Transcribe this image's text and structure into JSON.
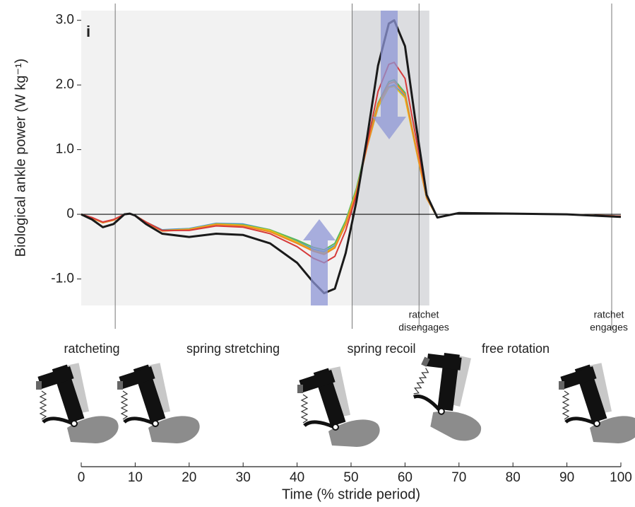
{
  "chart_data": {
    "type": "line",
    "panel_label": "i",
    "ylabel": "Biological ankle power (W kg⁻¹)",
    "xlabel": "Time (% stride period)",
    "x": [
      0,
      2,
      4,
      6,
      8,
      9,
      10,
      12,
      15,
      20,
      25,
      30,
      35,
      40,
      43,
      45,
      47,
      49,
      51,
      53,
      55,
      57,
      58,
      60,
      62,
      64,
      66,
      70,
      80,
      90,
      100
    ],
    "series": [
      {
        "color": "#4a8fd4",
        "values": [
          0,
          -0.06,
          -0.13,
          -0.09,
          0,
          0.01,
          -0.02,
          -0.12,
          -0.24,
          -0.22,
          -0.14,
          -0.15,
          -0.24,
          -0.42,
          -0.54,
          -0.58,
          -0.48,
          -0.12,
          0.38,
          1.05,
          1.65,
          1.97,
          2.0,
          1.82,
          1.02,
          0.25,
          -0.05,
          0.02,
          0.01,
          0,
          -0.03
        ]
      },
      {
        "color": "#5cb85c",
        "values": [
          0,
          -0.06,
          -0.13,
          -0.09,
          0,
          0.01,
          -0.02,
          -0.12,
          -0.25,
          -0.23,
          -0.15,
          -0.16,
          -0.24,
          -0.4,
          -0.51,
          -0.55,
          -0.45,
          -0.1,
          0.4,
          1.1,
          1.72,
          2.05,
          2.08,
          1.88,
          1.05,
          0.25,
          -0.05,
          0.02,
          0.01,
          0,
          -0.03
        ]
      },
      {
        "color": "#e0c21b",
        "values": [
          0,
          -0.06,
          -0.13,
          -0.09,
          0,
          0.01,
          -0.02,
          -0.12,
          -0.25,
          -0.23,
          -0.15,
          -0.17,
          -0.25,
          -0.43,
          -0.56,
          -0.6,
          -0.5,
          -0.14,
          0.36,
          1.05,
          1.66,
          1.96,
          1.98,
          1.8,
          1.02,
          0.25,
          -0.05,
          0.02,
          0.01,
          0,
          -0.03
        ]
      },
      {
        "color": "#f08a24",
        "values": [
          0,
          -0.06,
          -0.13,
          -0.09,
          0,
          0.01,
          -0.02,
          -0.13,
          -0.26,
          -0.24,
          -0.16,
          -0.18,
          -0.27,
          -0.45,
          -0.57,
          -0.62,
          -0.52,
          -0.16,
          0.34,
          1.05,
          1.7,
          2.02,
          2.05,
          1.85,
          1.05,
          0.25,
          -0.05,
          0.02,
          0.01,
          0,
          -0.03
        ]
      },
      {
        "color": "#d63a3a",
        "values": [
          0,
          -0.05,
          -0.12,
          -0.08,
          0,
          0.01,
          -0.02,
          -0.12,
          -0.25,
          -0.25,
          -0.18,
          -0.2,
          -0.3,
          -0.5,
          -0.68,
          -0.75,
          -0.65,
          -0.25,
          0.3,
          1.1,
          1.9,
          2.32,
          2.35,
          2.1,
          1.2,
          0.3,
          -0.05,
          0.02,
          0.01,
          0,
          -0.03
        ]
      },
      {
        "color": "#1a1a1a",
        "values": [
          0,
          -0.08,
          -0.2,
          -0.15,
          0,
          0.01,
          -0.02,
          -0.15,
          -0.3,
          -0.35,
          -0.3,
          -0.32,
          -0.45,
          -0.75,
          -1.05,
          -1.22,
          -1.15,
          -0.6,
          0.2,
          1.2,
          2.3,
          2.95,
          3.0,
          2.6,
          1.4,
          0.3,
          -0.05,
          0.02,
          0.01,
          0,
          -0.04
        ]
      }
    ],
    "xlim": [
      0,
      100
    ],
    "xticks": [
      0,
      10,
      20,
      30,
      40,
      50,
      60,
      70,
      80,
      90,
      100
    ],
    "ylim": [
      -1.41,
      3.15
    ],
    "yticks": [
      {
        "value": -1,
        "label": "-1.0"
      },
      0,
      {
        "value": 1,
        "label": "1.0"
      },
      {
        "value": 2,
        "label": "2.0"
      },
      {
        "value": 3,
        "label": "3.0"
      }
    ],
    "shaded_regions": [
      {
        "from": 0,
        "to": 64.5,
        "color": "#f2f2f2"
      },
      {
        "from": 50.2,
        "to": 64.5,
        "color": "#dcdde0"
      }
    ],
    "vlines": [
      6.3,
      50.2,
      62.6,
      98.3
    ],
    "annotations": [
      [
        "ratchet",
        "disengages"
      ],
      [
        "ratchet",
        "engages"
      ]
    ],
    "phases": [
      "ratcheting",
      "spring stretching",
      "spring recoil",
      "free rotation"
    ]
  }
}
